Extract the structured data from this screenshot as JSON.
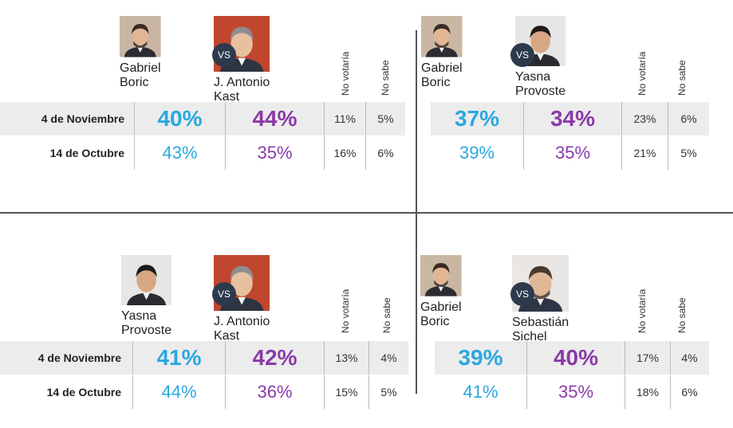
{
  "colors": {
    "blue": "#29a8e0",
    "purple": "#8a3aa8",
    "vs_badge": "#2d3a4e",
    "shade": "#ececec"
  },
  "vs_label": "VS",
  "col_no_votaria": "No votaría",
  "col_no_sabe": "No sabe",
  "row_labels": {
    "nov": "4 de Noviembre",
    "oct": "14 de Octubre"
  },
  "panels": [
    {
      "a": {
        "first": "Gabriel",
        "last": "Boric",
        "avatar": "boric-photo"
      },
      "b": {
        "first": "J. Antonio",
        "last": "Kast",
        "avatar": "kast-photo"
      },
      "nov": {
        "a": "40%",
        "b": "44%",
        "nv": "11%",
        "ns": "5%"
      },
      "oct": {
        "a": "43%",
        "b": "35%",
        "nv": "16%",
        "ns": "6%"
      }
    },
    {
      "a": {
        "first": "Gabriel",
        "last": "Boric",
        "avatar": "boric-photo"
      },
      "b": {
        "first": "Yasna",
        "last": "Provoste",
        "avatar": "provoste-photo"
      },
      "nov": {
        "a": "37%",
        "b": "34%",
        "nv": "23%",
        "ns": "6%"
      },
      "oct": {
        "a": "39%",
        "b": "35%",
        "nv": "21%",
        "ns": "5%"
      }
    },
    {
      "a": {
        "first": "Yasna",
        "last": "Provoste",
        "avatar": "provoste-photo"
      },
      "b": {
        "first": "J. Antonio",
        "last": "Kast",
        "avatar": "kast-photo"
      },
      "nov": {
        "a": "41%",
        "b": "42%",
        "nv": "13%",
        "ns": "4%"
      },
      "oct": {
        "a": "44%",
        "b": "36%",
        "nv": "15%",
        "ns": "5%"
      }
    },
    {
      "a": {
        "first": "Gabriel",
        "last": "Boric",
        "avatar": "boric-photo"
      },
      "b": {
        "first": "Sebastián",
        "last": "Sichel",
        "avatar": "sichel-photo"
      },
      "nov": {
        "a": "39%",
        "b": "40%",
        "nv": "17%",
        "ns": "4%"
      },
      "oct": {
        "a": "41%",
        "b": "35%",
        "nv": "18%",
        "ns": "6%"
      }
    }
  ]
}
